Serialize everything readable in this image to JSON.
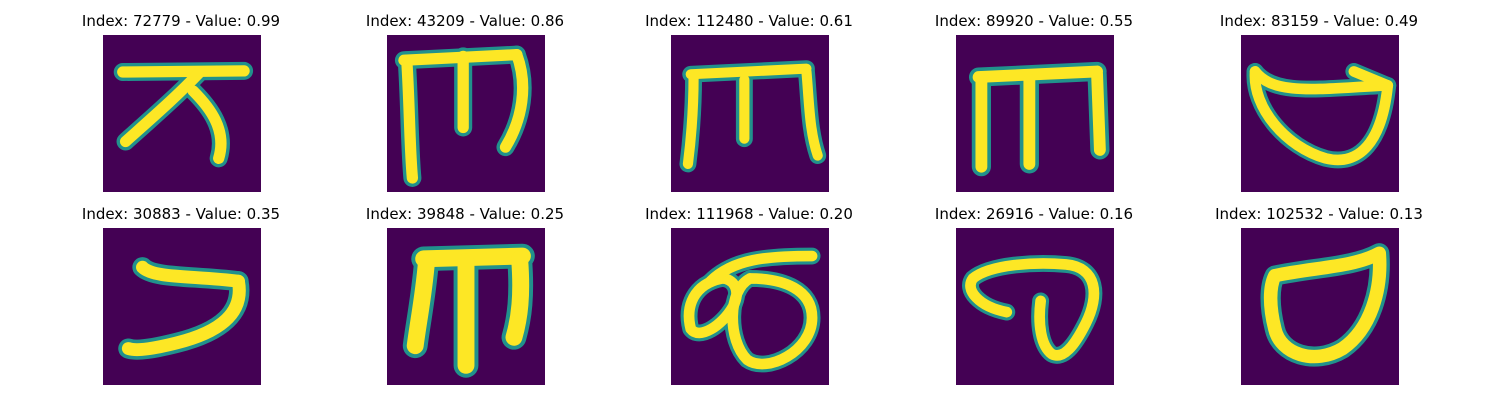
{
  "figure": {
    "background": "#ffffff",
    "colormap": {
      "name": "viridis",
      "low": "#440154",
      "mid": "#21918c",
      "high": "#fde725"
    },
    "panels": [
      {
        "title": "Index: 72779 - Value: 0.99",
        "glyph": "handwritten-character-72779"
      },
      {
        "title": "Index: 43209 - Value: 0.86",
        "glyph": "handwritten-character-43209"
      },
      {
        "title": "Index: 112480 - Value: 0.61",
        "glyph": "handwritten-character-112480"
      },
      {
        "title": "Index: 89920 - Value: 0.55",
        "glyph": "handwritten-character-89920"
      },
      {
        "title": "Index: 83159 - Value: 0.49",
        "glyph": "handwritten-character-83159"
      },
      {
        "title": "Index: 30883 - Value: 0.35",
        "glyph": "handwritten-character-30883"
      },
      {
        "title": "Index: 39848 - Value: 0.25",
        "glyph": "handwritten-character-39848"
      },
      {
        "title": "Index: 111968 - Value: 0.20",
        "glyph": "handwritten-character-111968"
      },
      {
        "title": "Index: 26916 - Value: 0.16",
        "glyph": "handwritten-character-26916"
      },
      {
        "title": "Index: 102532 - Value: 0.13",
        "glyph": "handwritten-character-102532"
      }
    ]
  }
}
